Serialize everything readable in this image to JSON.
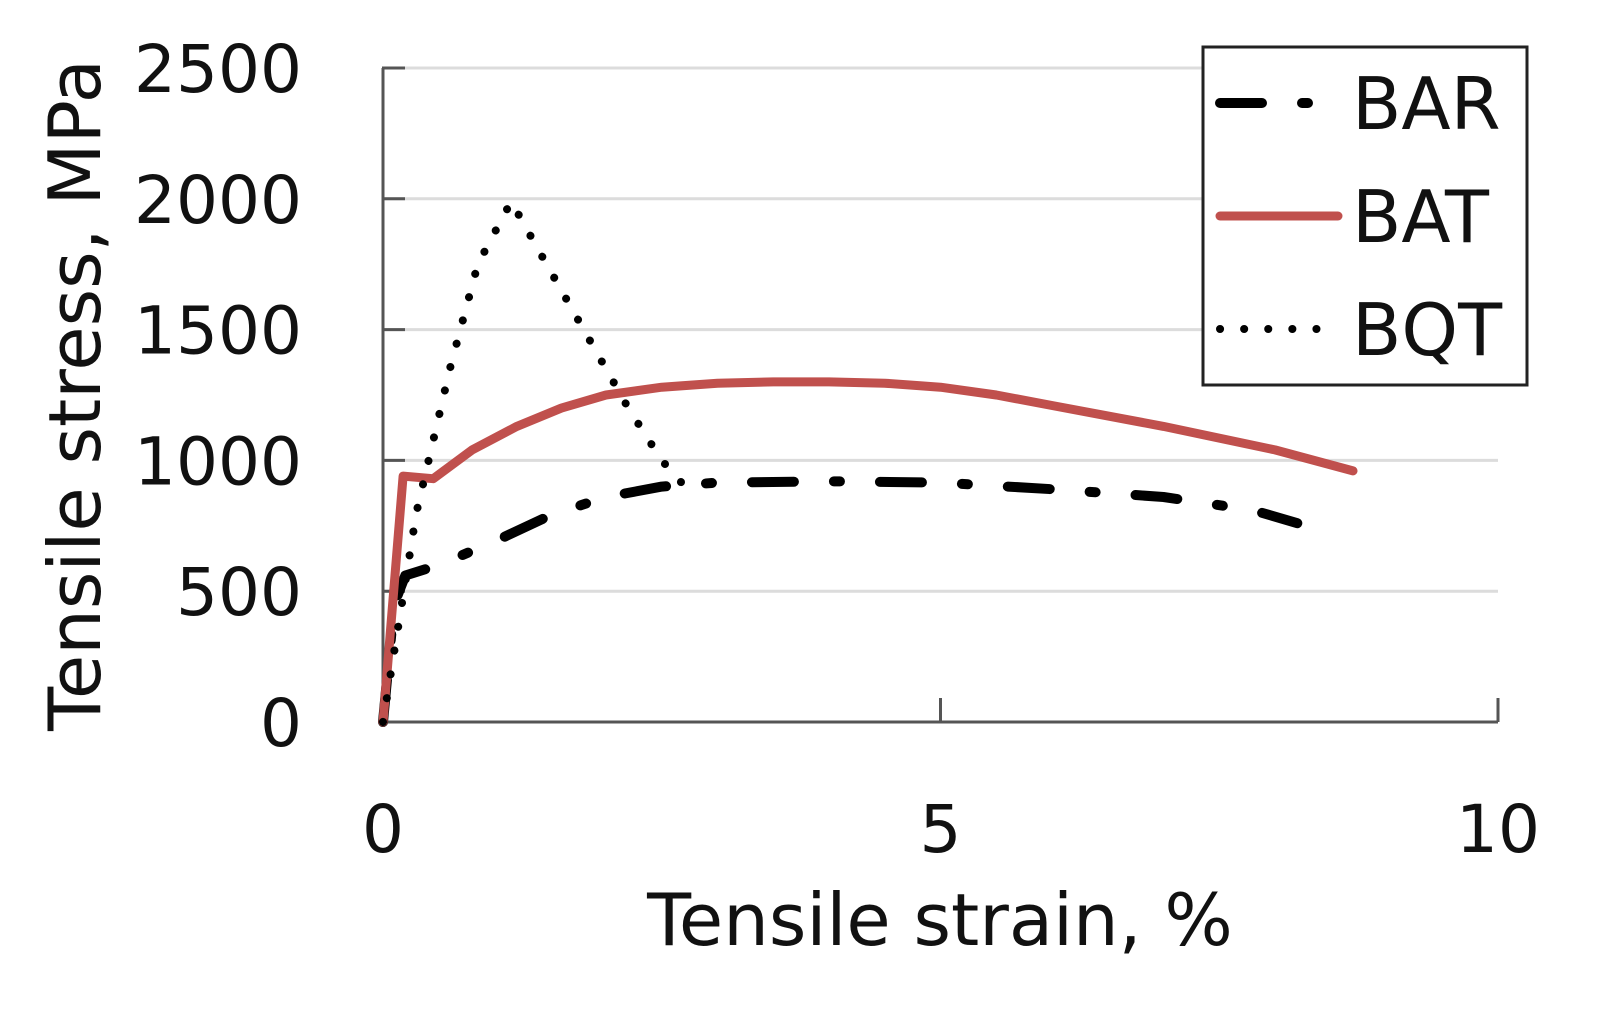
{
  "chart_data": {
    "type": "line",
    "xlabel": "Tensile strain, %",
    "ylabel": "Tensile stress, MPa",
    "xlim": [
      0,
      10
    ],
    "ylim": [
      0,
      2500
    ],
    "xticks": [
      0,
      5,
      10
    ],
    "xtick_labels": [
      "0",
      "5",
      "10"
    ],
    "yticks": [
      0,
      500,
      1000,
      1500,
      2000,
      2500
    ],
    "ytick_labels": [
      "0",
      "500",
      "1000",
      "1500",
      "2000",
      "2500"
    ],
    "grid": "horizontal",
    "legend_position": "top-right",
    "series": [
      {
        "name": "BAR",
        "color": "#000000",
        "dash": "dash-dot",
        "points": [
          [
            0,
            0
          ],
          [
            0.1,
            450
          ],
          [
            0.2,
            560
          ],
          [
            0.5,
            600
          ],
          [
            1.0,
            690
          ],
          [
            1.5,
            790
          ],
          [
            2.0,
            860
          ],
          [
            2.5,
            900
          ],
          [
            3.0,
            915
          ],
          [
            4.0,
            920
          ],
          [
            5.0,
            915
          ],
          [
            6.0,
            890
          ],
          [
            7.0,
            860
          ],
          [
            7.8,
            810
          ],
          [
            8.2,
            760
          ]
        ]
      },
      {
        "name": "BAT",
        "color": "#c0504d",
        "dash": "solid",
        "points": [
          [
            0,
            0
          ],
          [
            0.18,
            940
          ],
          [
            0.45,
            930
          ],
          [
            0.8,
            1040
          ],
          [
            1.2,
            1130
          ],
          [
            1.6,
            1200
          ],
          [
            2.0,
            1250
          ],
          [
            2.5,
            1280
          ],
          [
            3.0,
            1295
          ],
          [
            3.5,
            1300
          ],
          [
            4.0,
            1300
          ],
          [
            4.5,
            1295
          ],
          [
            5.0,
            1280
          ],
          [
            5.5,
            1250
          ],
          [
            6.0,
            1210
          ],
          [
            7.0,
            1130
          ],
          [
            8.0,
            1040
          ],
          [
            8.7,
            960
          ]
        ]
      },
      {
        "name": "BQT",
        "color": "#000000",
        "dash": "dotted",
        "points": [
          [
            0,
            0
          ],
          [
            0.3,
            800
          ],
          [
            0.6,
            1350
          ],
          [
            0.85,
            1750
          ],
          [
            1.15,
            1990
          ],
          [
            1.4,
            1800
          ],
          [
            1.8,
            1500
          ],
          [
            2.2,
            1200
          ],
          [
            2.5,
            1000
          ],
          [
            2.75,
            880
          ]
        ]
      }
    ]
  }
}
